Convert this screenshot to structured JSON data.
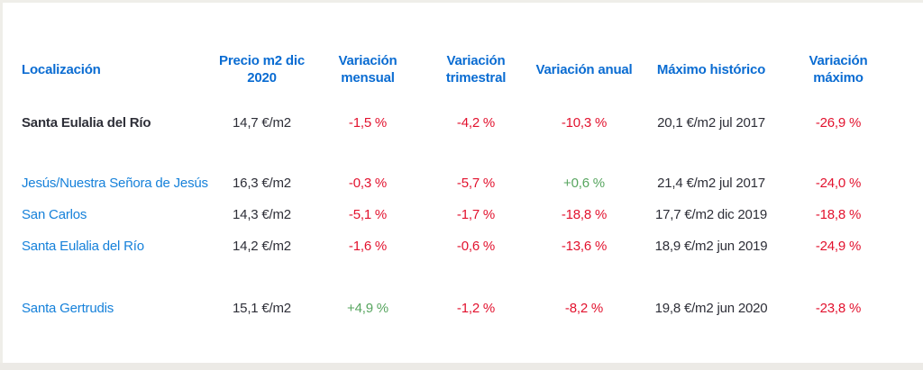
{
  "colors": {
    "header_blue": "#0a6cd2",
    "link_blue": "#1681da",
    "text_dark": "#2e2f38",
    "negative_red": "#e2122e",
    "positive_green": "#57a55f",
    "edge_beige": "#efeee9",
    "footer_gray": "#eceae6"
  },
  "table": {
    "headers": [
      "Localización",
      "Precio m2 dic 2020",
      "Variación mensual",
      "Variación trimestral",
      "Variación anual",
      "Máximo histórico",
      "Variación máximo"
    ],
    "rows": [
      {
        "location": "Santa Eulalia del Río",
        "price": "14,7 €/m2",
        "var_mensual": "-1,5 %",
        "var_trimestral": "-4,2 %",
        "var_anual": "-10,3 %",
        "max_historico": "20,1 €/m2 jul 2017",
        "var_maximo": "-26,9 %"
      },
      {
        "location": "Jesús/Nuestra Señora de Jesús",
        "price": "16,3 €/m2",
        "var_mensual": "-0,3 %",
        "var_trimestral": "-5,7 %",
        "var_anual": "+0,6 %",
        "max_historico": "21,4 €/m2 jul 2017",
        "var_maximo": "-24,0 %"
      },
      {
        "location": "San Carlos",
        "price": "14,3 €/m2",
        "var_mensual": "-5,1 %",
        "var_trimestral": "-1,7 %",
        "var_anual": "-18,8 %",
        "max_historico": "17,7 €/m2 dic 2019",
        "var_maximo": "-18,8 %"
      },
      {
        "location": "Santa Eulalia del Río",
        "price": "14,2 €/m2",
        "var_mensual": "-1,6 %",
        "var_trimestral": "-0,6 %",
        "var_anual": "-13,6 %",
        "max_historico": "18,9 €/m2 jun 2019",
        "var_maximo": "-24,9 %"
      },
      {
        "location": "Santa Gertrudis",
        "price": "15,1 €/m2",
        "var_mensual": "+4,9 %",
        "var_trimestral": "-1,2 %",
        "var_anual": "-8,2 %",
        "max_historico": "19,8 €/m2 jun 2020",
        "var_maximo": "-23,8 %"
      }
    ]
  }
}
